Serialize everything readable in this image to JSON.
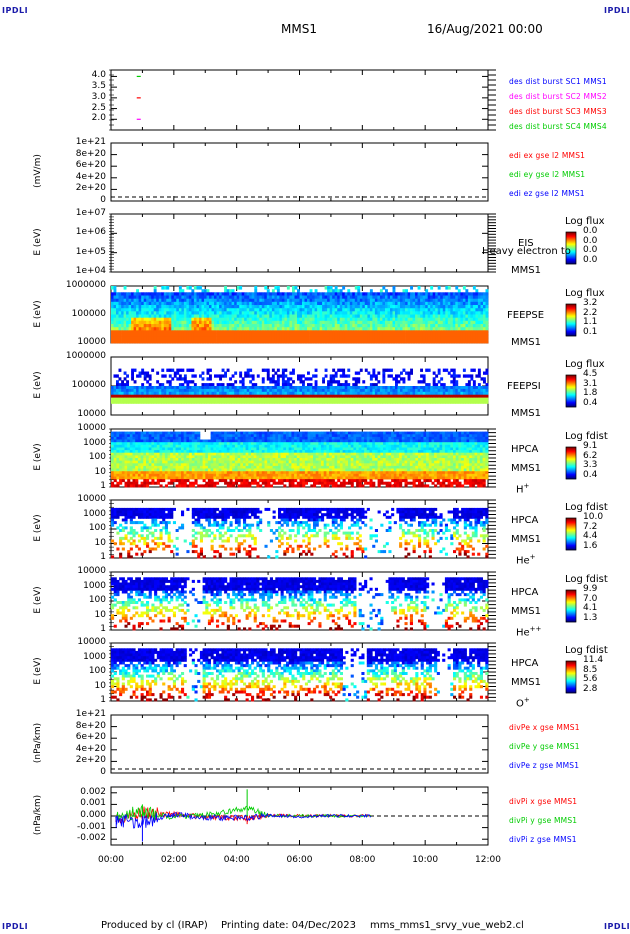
{
  "corner_label": "IPDLI",
  "header": {
    "spacecraft": "MMS1",
    "date": "16/Aug/2021 00:00"
  },
  "footer": {
    "produced": "Produced by cl (IRAP)",
    "printing": "Printing date: 04/Dec/2023",
    "file": "mms_mms1_srvy_vue_web2.cl"
  },
  "colors": {
    "c1": "#0000ff",
    "c2": "#ff00ff",
    "c3": "#ff0000",
    "c4": "#00cc00",
    "ex": "#ff0000",
    "ey": "#00cc00",
    "ez": "#0000ff"
  },
  "chart_data": [
    {
      "type": "scatter",
      "panel": "des dist burst",
      "ylim": [
        1.5,
        4.3
      ],
      "yticks": [
        "4.0",
        "3.5",
        "3.0",
        "2.5",
        "2.0"
      ],
      "legend": [
        "des dist burst SC1 MMS1",
        "des dist burst SC2 MMS2",
        "des dist burst SC3 MMS3",
        "des dist burst SC4 MMS4"
      ],
      "series": [
        {
          "name": "des dist burst SC1 MMS1",
          "x": [
            "00:53"
          ],
          "y": [
            4.0
          ]
        },
        {
          "name": "des dist burst SC2 MMS2",
          "x": [
            "00:53"
          ],
          "y": [
            3.0
          ]
        },
        {
          "name": "des dist burst SC3 MMS3",
          "x": [
            "00:53"
          ],
          "y": [
            2.0
          ]
        }
      ]
    },
    {
      "type": "line",
      "panel": "edi e gse l2",
      "ylabel": "(mV/m)",
      "yticks": [
        "1e+21",
        "8e+20",
        "6e+20",
        "4e+20",
        "2e+20",
        "0"
      ],
      "legend": [
        "edi ex gse l2 MMS1",
        "edi ey gse l2 MMS1",
        "edi ez gse l2 MMS1"
      ],
      "series": []
    },
    {
      "type": "heatmap",
      "panel": "EIS",
      "ylabel": "E (eV)",
      "yscale": "log",
      "yticks": [
        "1e+07",
        "1e+06",
        "1e+05",
        "1e+04"
      ],
      "labels": [
        "EIS",
        "MMS1"
      ],
      "overlay_text": "Heavy electron to",
      "colorbar": {
        "title": "Log flux",
        "ticks": [
          "0.0",
          "0.0",
          "0.0",
          "0.0"
        ]
      }
    },
    {
      "type": "heatmap",
      "panel": "FEEPSE",
      "ylabel": "E (eV)",
      "yscale": "log",
      "yticks": [
        "1000000",
        "100000",
        "10000"
      ],
      "labels": [
        "FEEPSE",
        "MMS1"
      ],
      "colorbar": {
        "title": "Log flux",
        "ticks": [
          "3.2",
          "2.2",
          "1.1",
          "0.1"
        ]
      }
    },
    {
      "type": "heatmap",
      "panel": "FEEPSI",
      "ylabel": "E (eV)",
      "yscale": "log",
      "yticks": [
        "1000000",
        "100000",
        "10000"
      ],
      "labels": [
        "FEEPSI",
        "MMS1"
      ],
      "colorbar": {
        "title": "Log flux",
        "ticks": [
          "4.5",
          "3.1",
          "1.8",
          "0.4"
        ]
      }
    },
    {
      "type": "heatmap",
      "panel": "HPCA H+",
      "ylabel": "E (eV)",
      "yscale": "log",
      "yticks": [
        "10000",
        "1000",
        "100",
        "10",
        "1"
      ],
      "labels": [
        "HPCA",
        "MMS1"
      ],
      "species": "H",
      "species_sup": "+",
      "colorbar": {
        "title": "Log fdist",
        "ticks": [
          "9.1",
          "6.2",
          "3.3",
          "0.4"
        ]
      }
    },
    {
      "type": "heatmap",
      "panel": "HPCA He+",
      "ylabel": "E (eV)",
      "yscale": "log",
      "yticks": [
        "10000",
        "1000",
        "100",
        "10",
        "1"
      ],
      "labels": [
        "HPCA",
        "MMS1"
      ],
      "species": "He",
      "species_sup": "+",
      "colorbar": {
        "title": "Log fdist",
        "ticks": [
          "10.0",
          "7.2",
          "4.4",
          "1.6"
        ]
      }
    },
    {
      "type": "heatmap",
      "panel": "HPCA He++",
      "ylabel": "E (eV)",
      "yscale": "log",
      "yticks": [
        "10000",
        "1000",
        "100",
        "10",
        "1"
      ],
      "labels": [
        "HPCA",
        "MMS1"
      ],
      "species": "He",
      "species_sup": "++",
      "colorbar": {
        "title": "Log fdist",
        "ticks": [
          "9.9",
          "7.0",
          "4.1",
          "1.3"
        ]
      }
    },
    {
      "type": "heatmap",
      "panel": "HPCA O+",
      "ylabel": "E (eV)",
      "yscale": "log",
      "yticks": [
        "10000",
        "1000",
        "100",
        "10",
        "1"
      ],
      "labels": [
        "HPCA",
        "MMS1"
      ],
      "species": "O",
      "species_sup": "+",
      "colorbar": {
        "title": "Log fdist",
        "ticks": [
          "11.4",
          "8.5",
          "5.6",
          "2.8"
        ]
      }
    },
    {
      "type": "line",
      "panel": "divPe gse",
      "ylabel": "(nPa/km)",
      "yticks": [
        "1e+21",
        "8e+20",
        "6e+20",
        "4e+20",
        "2e+20",
        "0"
      ],
      "legend": [
        "divPe x gse MMS1",
        "divPe y gse MMS1",
        "divPe z gse MMS1"
      ],
      "series": []
    },
    {
      "type": "line",
      "panel": "divPi gse",
      "ylabel": "(nPa/km)",
      "ylim": [
        -0.0025,
        0.0025
      ],
      "yticks": [
        "0.002",
        "0.001",
        "0.000",
        "-0.001",
        "-0.002"
      ],
      "legend": [
        "divPi x gse MMS1",
        "divPi y gse MMS1",
        "divPi z gse MMS1"
      ],
      "series": [
        {
          "name": "divPi x gse MMS1",
          "x": [
            "00:10",
            "01:00",
            "02:00",
            "03:00",
            "04:20",
            "05:00",
            "06:00",
            "07:00",
            "08:00"
          ],
          "y": [
            -0.0006,
            0.0008,
            0.0004,
            -0.0002,
            -0.0007,
            0.0002,
            0.0001,
            0.0001,
            0.0
          ]
        },
        {
          "name": "divPi y gse MMS1",
          "x": [
            "00:10",
            "01:00",
            "02:00",
            "03:00",
            "04:20",
            "05:00",
            "06:00",
            "07:00",
            "08:00"
          ],
          "y": [
            0.0002,
            0.001,
            -0.0003,
            0.0002,
            0.0023,
            0.0001,
            0.0001,
            0.0,
            0.0
          ]
        },
        {
          "name": "divPi z gse MMS1",
          "x": [
            "00:10",
            "01:00",
            "02:00",
            "03:00",
            "04:20",
            "05:00",
            "06:00",
            "07:00",
            "08:00"
          ],
          "y": [
            -0.001,
            -0.0022,
            0.0005,
            -0.0004,
            -0.0006,
            0.0002,
            -0.0002,
            0.0001,
            0.0
          ]
        }
      ]
    }
  ],
  "xaxis": {
    "ticks": [
      "00:00",
      "02:00",
      "04:00",
      "06:00",
      "08:00",
      "10:00",
      "12:00"
    ],
    "range": [
      "00:00",
      "12:00"
    ]
  }
}
